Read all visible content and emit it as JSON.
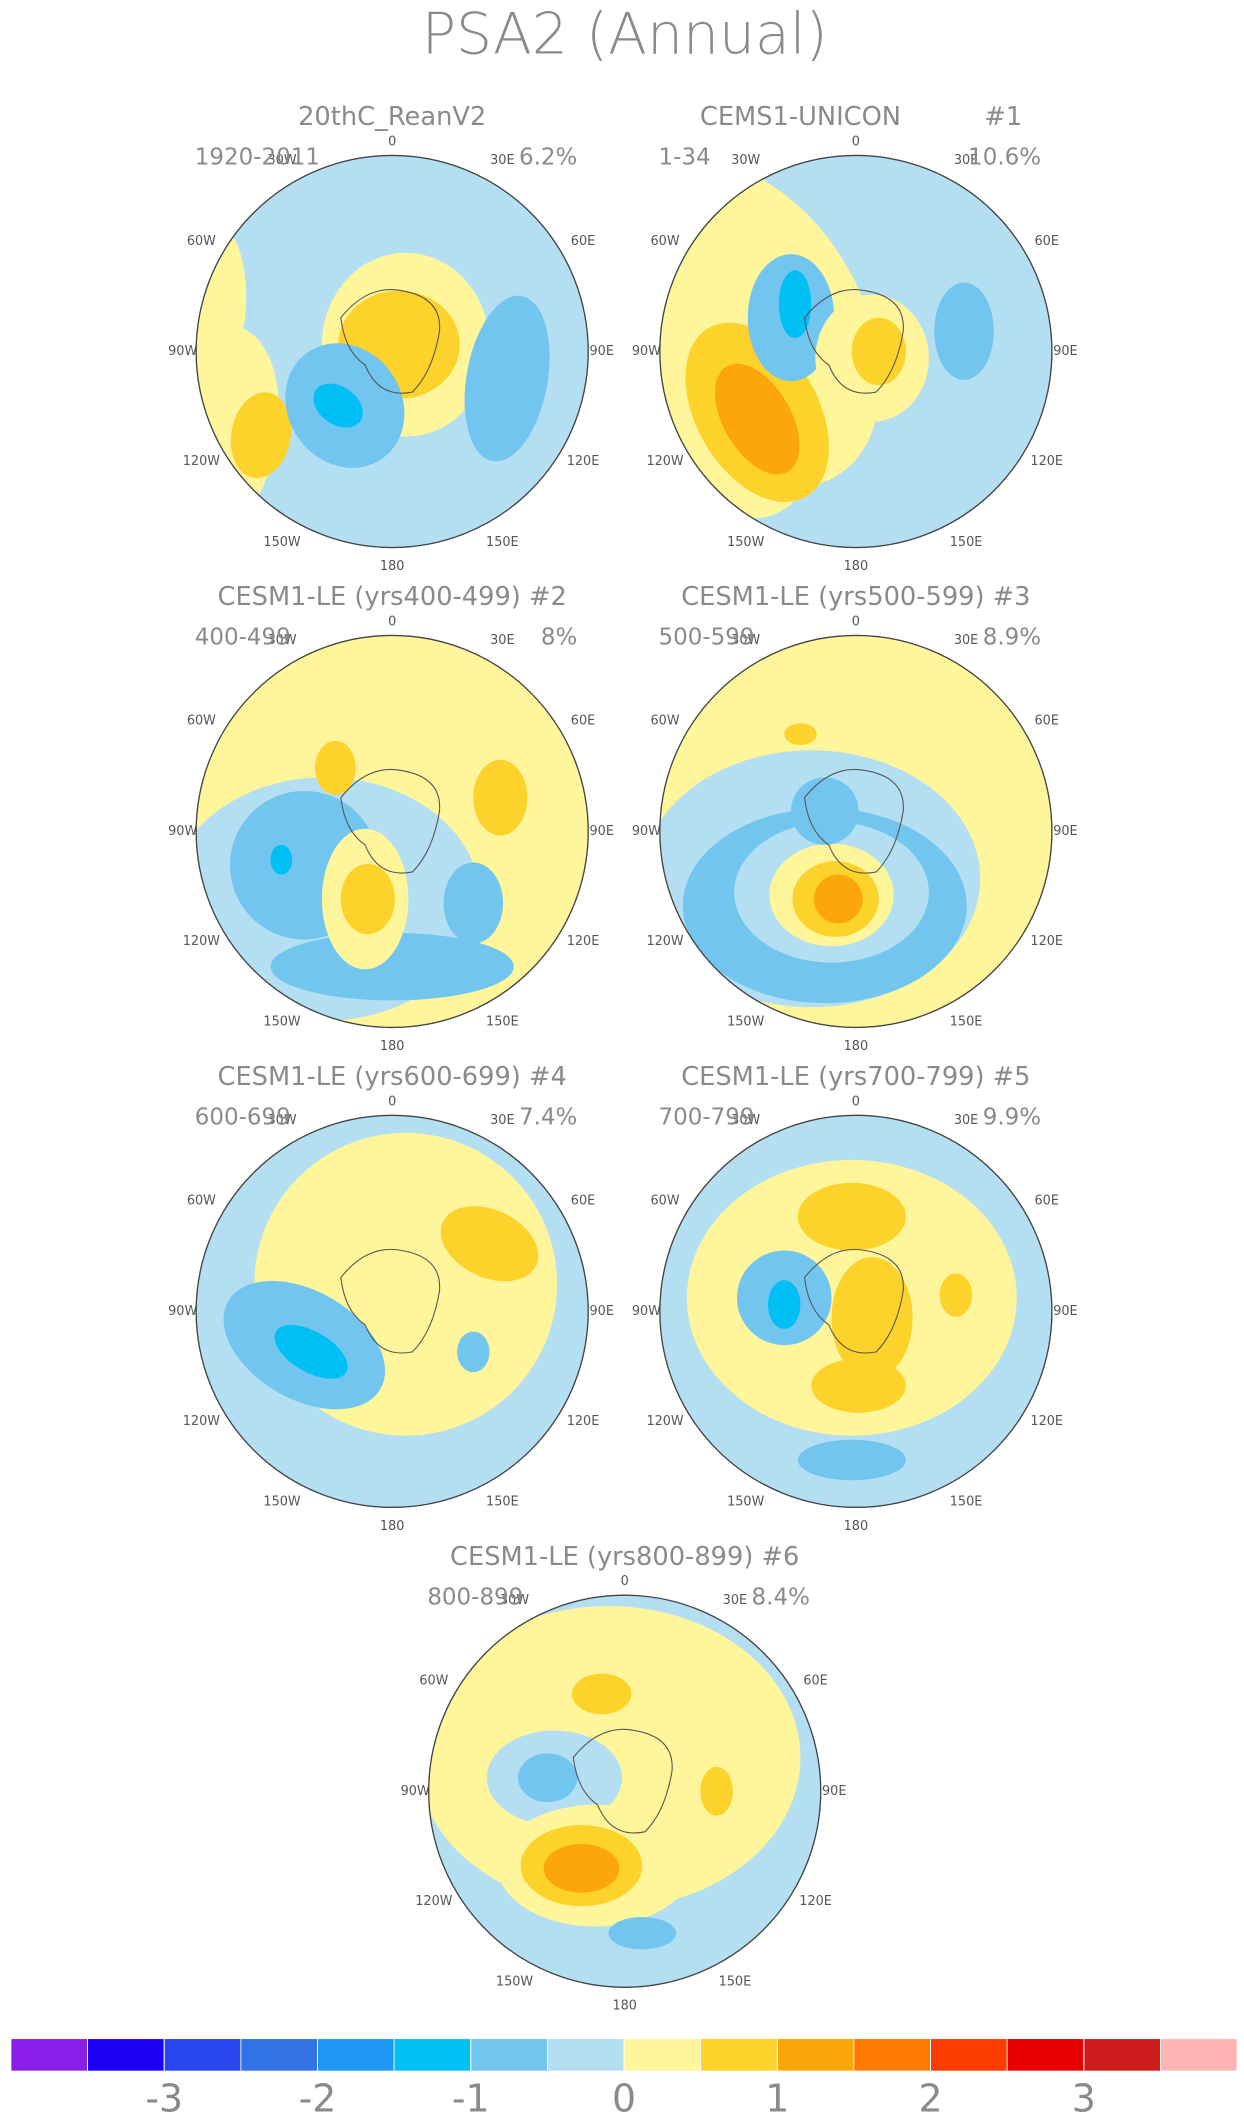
{
  "title": "PSA2 (Annual)",
  "longitude_labels": [
    "0",
    "30E",
    "60E",
    "90E",
    "120E",
    "150E",
    "180",
    "150W",
    "120W",
    "90W",
    "60W",
    "30W"
  ],
  "panels": [
    {
      "title": "20thC_ReanV2",
      "years": "1920-2011",
      "percent": "6.2%"
    },
    {
      "title": "CEMS1-UNICON",
      "number": "#1",
      "years": "1-34",
      "percent": "10.6%"
    },
    {
      "title": "CESM1-LE (yrs400-499) #2",
      "years": "400-499",
      "percent": "8%"
    },
    {
      "title": "CESM1-LE (yrs500-599) #3",
      "years": "500-599",
      "percent": "8.9%"
    },
    {
      "title": "CESM1-LE (yrs600-699) #4",
      "years": "600-699",
      "percent": "7.4%"
    },
    {
      "title": "CESM1-LE (yrs700-799) #5",
      "years": "700-799",
      "percent": "9.9%"
    },
    {
      "title": "CESM1-LE (yrs800-899) #6",
      "years": "800-899",
      "percent": "8.4%"
    }
  ],
  "colorbar": {
    "range": [
      -4,
      4
    ],
    "ticks": [
      -3,
      -2,
      -1,
      0,
      1,
      2,
      3
    ],
    "colors": [
      "#8a1ee8",
      "#1c00f5",
      "#2a46ee",
      "#3274e8",
      "#1e96f5",
      "#00bff5",
      "#72c5ef",
      "#b4dff3",
      "#fff59a",
      "#fdd22a",
      "#fda60a",
      "#fd7a00",
      "#fd3c00",
      "#e80000",
      "#cc1c1c",
      "#fdb4b4"
    ]
  }
}
